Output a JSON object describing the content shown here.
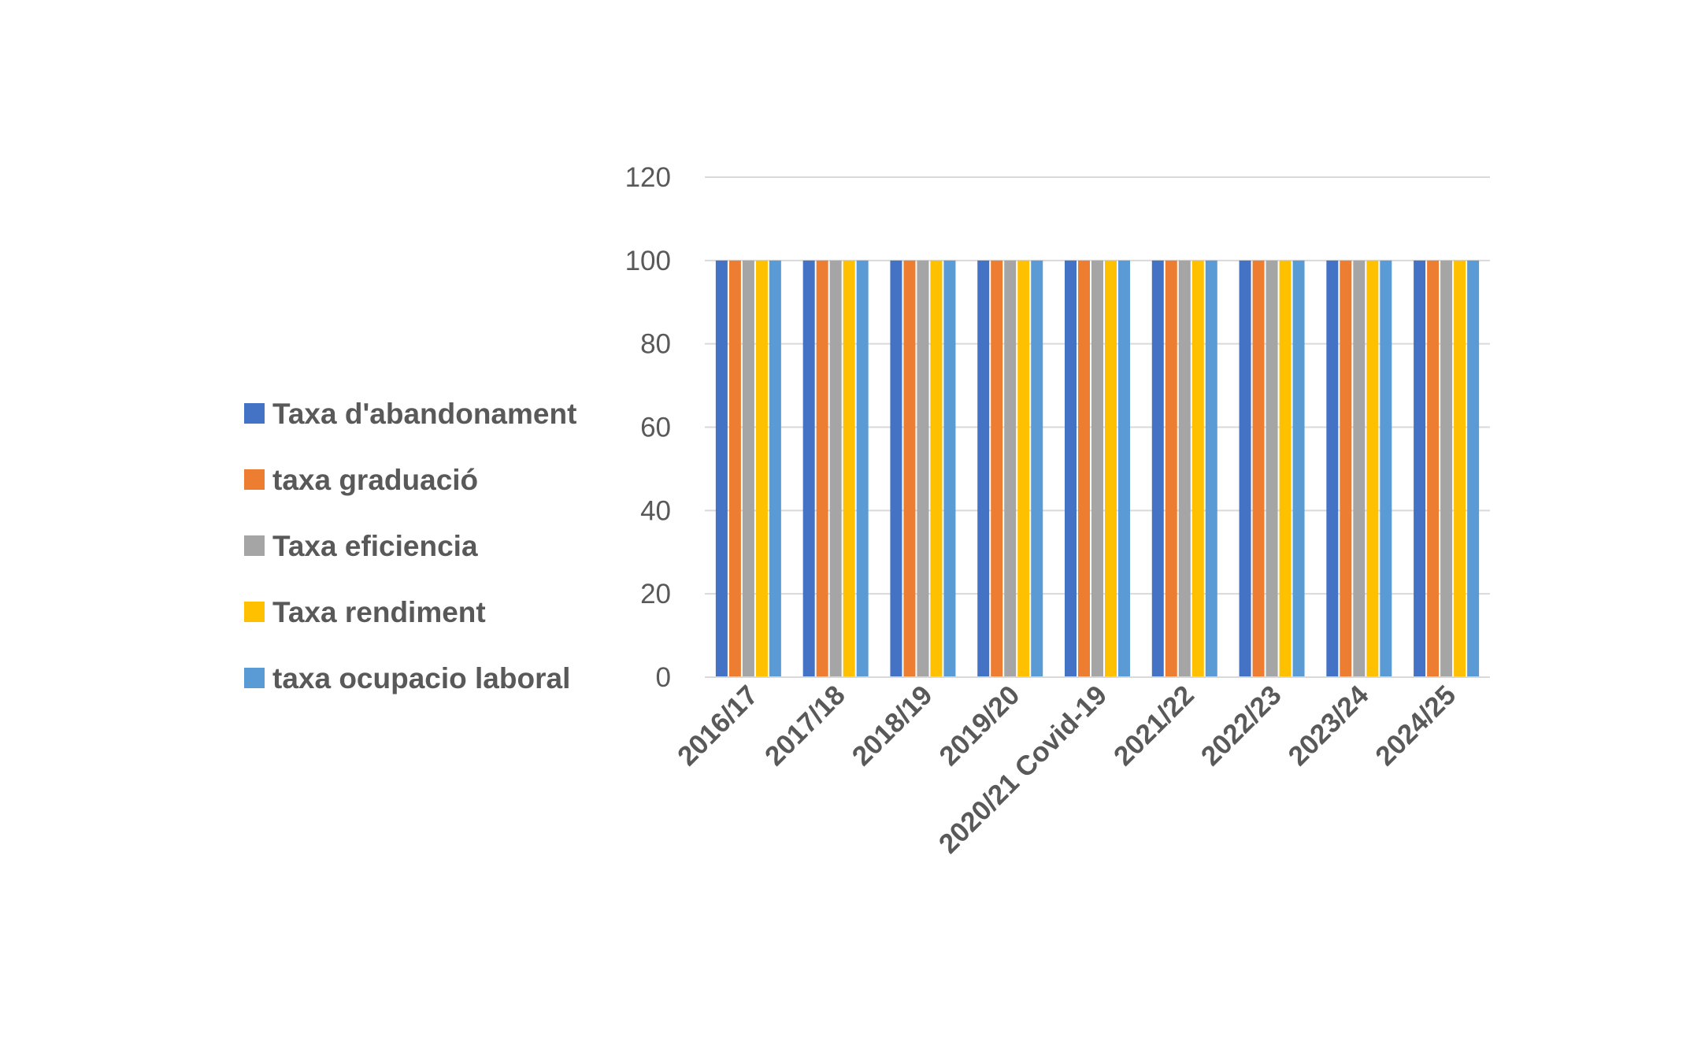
{
  "chart_data": {
    "type": "bar",
    "title": "",
    "xlabel": "",
    "ylabel": "",
    "ylim": [
      0,
      120
    ],
    "yticks": [
      0,
      20,
      40,
      60,
      80,
      100,
      120
    ],
    "grid": true,
    "legend_position": "left",
    "categories": [
      "2016/17",
      "2017/18",
      "2018/19",
      "2019/20",
      "2020/21 Covid-19",
      "2021/22",
      "2022/23",
      "2023/24",
      "2024/25"
    ],
    "series": [
      {
        "name": "Taxa d'abandonament",
        "color": "#4472C4",
        "values": [
          100,
          100,
          100,
          100,
          100,
          100,
          100,
          100,
          100
        ]
      },
      {
        "name": "taxa graduació",
        "color": "#ED7D31",
        "values": [
          100,
          100,
          100,
          100,
          100,
          100,
          100,
          100,
          100
        ]
      },
      {
        "name": "Taxa eficiencia",
        "color": "#A5A5A5",
        "values": [
          100,
          100,
          100,
          100,
          100,
          100,
          100,
          100,
          100
        ]
      },
      {
        "name": "Taxa rendiment",
        "color": "#FFC000",
        "values": [
          100,
          100,
          100,
          100,
          100,
          100,
          100,
          100,
          100
        ]
      },
      {
        "name": "taxa ocupacio laboral",
        "color": "#5B9BD5",
        "values": [
          100,
          100,
          100,
          100,
          100,
          100,
          100,
          100,
          100
        ]
      }
    ]
  }
}
